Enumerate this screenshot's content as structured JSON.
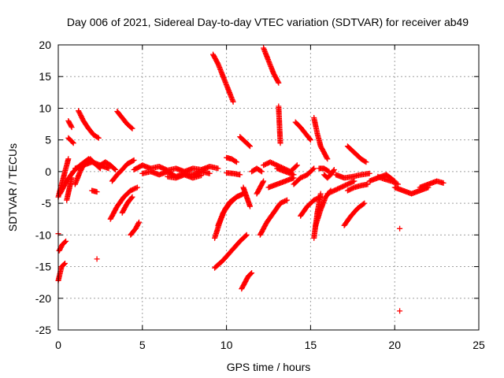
{
  "chart_data": {
    "type": "scatter",
    "title": "Day 006 of 2021, Sidereal Day-to-day VTEC variation (SDTVAR) for receiver ab49",
    "xlabel": "GPS time / hours",
    "ylabel": "SDTVAR / TECUs",
    "xlim": [
      0,
      25
    ],
    "ylim": [
      -25,
      20
    ],
    "x_ticks": [
      0,
      5,
      10,
      15,
      20,
      25
    ],
    "y_ticks": [
      -25,
      -20,
      -15,
      -10,
      -5,
      0,
      5,
      10,
      15,
      20
    ],
    "grid": true,
    "marker": "+",
    "colors": {
      "points": "#ff0000"
    },
    "arcs": [
      {
        "x": [
          0.0,
          0.2,
          0.4
        ],
        "y": [
          -17.2,
          -15.0,
          -14.5
        ]
      },
      {
        "x": [
          0.05,
          0.25,
          0.45
        ],
        "y": [
          -12.5,
          -11.5,
          -11.0
        ]
      },
      {
        "x": [
          0.0,
          0.2,
          0.4,
          0.6
        ],
        "y": [
          -4.0,
          -2.0,
          0.0,
          2.0
        ]
      },
      {
        "x": [
          0.1,
          0.5,
          0.9,
          1.3,
          1.8
        ],
        "y": [
          -3.5,
          -1.5,
          0.0,
          1.0,
          2.0
        ]
      },
      {
        "x": [
          0.5,
          0.8
        ],
        "y": [
          -4.5,
          -1.0
        ]
      },
      {
        "x": [
          0.6,
          0.8
        ],
        "y": [
          8.0,
          7.0
        ]
      },
      {
        "x": [
          0.6,
          0.9
        ],
        "y": [
          5.3,
          4.5
        ]
      },
      {
        "x": [
          1.2,
          1.5,
          1.8,
          2.1,
          2.4
        ],
        "y": [
          9.6,
          8.0,
          6.8,
          5.8,
          5.3
        ]
      },
      {
        "x": [
          1.0,
          1.3,
          1.6,
          1.9,
          2.2,
          2.5
        ],
        "y": [
          -2.0,
          0.0,
          1.5,
          2.0,
          1.2,
          0.5
        ]
      },
      {
        "x": [
          1.0,
          1.5,
          2.0,
          2.5,
          3.0
        ],
        "y": [
          0.5,
          1.0,
          1.5,
          1.0,
          0.5
        ]
      },
      {
        "x": [
          2.0,
          2.3
        ],
        "y": [
          -3.0,
          -3.2
        ]
      },
      {
        "x": [
          2.5,
          2.8,
          3.1,
          3.4
        ],
        "y": [
          1.0,
          1.5,
          1.0,
          0.3
        ]
      },
      {
        "x": [
          3.5,
          3.8,
          4.1,
          4.4
        ],
        "y": [
          9.5,
          8.5,
          7.5,
          6.8
        ]
      },
      {
        "x": [
          3.2,
          3.5,
          3.8,
          4.1,
          4.5
        ],
        "y": [
          -1.5,
          -0.5,
          0.3,
          1.2,
          1.8
        ]
      },
      {
        "x": [
          3.1,
          3.5,
          3.9,
          4.3,
          4.7
        ],
        "y": [
          -7.5,
          -5.5,
          -4.0,
          -3.0,
          -2.5
        ]
      },
      {
        "x": [
          3.8,
          4.1,
          4.4
        ],
        "y": [
          -6.5,
          -5.0,
          -4.0
        ]
      },
      {
        "x": [
          4.3,
          4.6,
          4.8
        ],
        "y": [
          -10.0,
          -9.0,
          -8.0
        ]
      },
      {
        "x": [
          4.5,
          5.0,
          5.5,
          6.0,
          6.5,
          7.0,
          7.5,
          8.0,
          8.5,
          9.0,
          9.5
        ],
        "y": [
          0.3,
          1.0,
          0.5,
          0.8,
          0.2,
          0.5,
          0.0,
          0.5,
          0.3,
          0.8,
          0.5
        ]
      },
      {
        "x": [
          5.0,
          5.5,
          6.0,
          6.5,
          7.0,
          7.5,
          8.0,
          8.5,
          9.0
        ],
        "y": [
          -0.3,
          0.0,
          -0.5,
          0.0,
          -0.8,
          -0.3,
          -0.5,
          0.0,
          -0.3
        ]
      },
      {
        "x": [
          6.5,
          7.0,
          7.5,
          8.0,
          8.5
        ],
        "y": [
          -0.8,
          -1.0,
          -0.5,
          -1.0,
          -0.6
        ]
      },
      {
        "x": [
          9.2,
          9.5,
          9.8,
          10.1,
          10.4
        ],
        "y": [
          18.5,
          17.0,
          15.0,
          13.0,
          11.0
        ]
      },
      {
        "x": [
          9.3,
          9.6,
          9.9,
          10.2,
          10.6,
          11.0
        ],
        "y": [
          -10.5,
          -8.0,
          -6.0,
          -4.8,
          -4.0,
          -3.5
        ]
      },
      {
        "x": [
          9.3,
          9.8,
          10.3,
          10.8,
          11.2
        ],
        "y": [
          -15.2,
          -14.0,
          -12.5,
          -11.0,
          -10.0
        ]
      },
      {
        "x": [
          9.5,
          9.8,
          10.2,
          10.6,
          11.0
        ],
        "y": [
          -8.5,
          -6.5,
          -5.0,
          -4.0,
          -3.5
        ]
      },
      {
        "x": [
          10.0,
          10.3,
          10.6
        ],
        "y": [
          2.2,
          2.0,
          1.5
        ]
      },
      {
        "x": [
          10.0,
          10.4,
          10.8
        ],
        "y": [
          -0.2,
          -0.3,
          -0.5
        ]
      },
      {
        "x": [
          10.8,
          11.0,
          11.2,
          11.4
        ],
        "y": [
          5.5,
          5.0,
          4.5,
          4.0
        ]
      },
      {
        "x": [
          10.9,
          11.1,
          11.3,
          11.5
        ],
        "y": [
          -18.5,
          -17.5,
          -16.5,
          -16.0
        ]
      },
      {
        "x": [
          11.5,
          11.8,
          12.1
        ],
        "y": [
          0.0,
          0.5,
          0.0
        ]
      },
      {
        "x": [
          11.0,
          11.2,
          11.4
        ],
        "y": [
          -2.5,
          -4.0,
          -5.5
        ]
      },
      {
        "x": [
          12.2,
          12.5,
          12.8,
          13.1
        ],
        "y": [
          19.5,
          17.5,
          15.5,
          14.0
        ]
      },
      {
        "x": [
          11.8,
          12.0,
          12.2
        ],
        "y": [
          -3.5,
          -2.5,
          -1.5
        ]
      },
      {
        "x": [
          12.0,
          12.4,
          12.8,
          13.2,
          13.6
        ],
        "y": [
          -10.0,
          -8.0,
          -6.5,
          -5.0,
          -4.5
        ]
      },
      {
        "x": [
          12.2,
          12.6,
          13.0,
          13.4,
          13.8,
          14.2
        ],
        "y": [
          1.0,
          1.5,
          1.0,
          0.5,
          0.0,
          1.0
        ]
      },
      {
        "x": [
          12.5,
          13.0,
          13.5,
          14.0
        ],
        "y": [
          -2.5,
          -2.0,
          -1.5,
          -1.0
        ]
      },
      {
        "x": [
          13.1,
          13.2
        ],
        "y": [
          10.3,
          4.5
        ]
      },
      {
        "x": [
          13.0,
          13.5,
          14.0
        ],
        "y": [
          0.5,
          0.0,
          -0.5
        ]
      },
      {
        "x": [
          14.1,
          14.4,
          14.7,
          15.0
        ],
        "y": [
          7.8,
          7.0,
          6.0,
          5.0
        ]
      },
      {
        "x": [
          14.0,
          14.4,
          14.8,
          15.2
        ],
        "y": [
          -2.0,
          -1.0,
          -0.5,
          0.5
        ]
      },
      {
        "x": [
          14.4,
          14.8,
          15.2,
          15.6
        ],
        "y": [
          -7.0,
          -5.5,
          -4.5,
          -4.0
        ]
      },
      {
        "x": [
          15.2,
          15.4,
          15.6,
          15.8,
          16.0
        ],
        "y": [
          8.5,
          6.0,
          4.0,
          3.0,
          2.0
        ]
      },
      {
        "x": [
          15.2,
          15.3,
          15.4,
          15.5,
          15.6
        ],
        "y": [
          -10.5,
          -8.5,
          -6.5,
          -5.0,
          -3.5
        ]
      },
      {
        "x": [
          15.3,
          15.6,
          15.9,
          16.2
        ],
        "y": [
          -8.5,
          -6.0,
          -4.0,
          -3.0
        ]
      },
      {
        "x": [
          15.5,
          15.8,
          16.1
        ],
        "y": [
          0.5,
          0.5,
          0.0
        ]
      },
      {
        "x": [
          15.8,
          16.0,
          16.2,
          16.4
        ],
        "y": [
          -0.5,
          -1.0,
          -0.5,
          0.3
        ]
      },
      {
        "x": [
          16.0,
          16.4,
          16.8,
          17.2,
          17.6
        ],
        "y": [
          -3.5,
          -3.0,
          -2.5,
          -2.0,
          -1.5
        ]
      },
      {
        "x": [
          16.5,
          17.0,
          17.5,
          18.0,
          18.5
        ],
        "y": [
          -0.5,
          -1.0,
          -0.8,
          -0.5,
          -0.3
        ]
      },
      {
        "x": [
          17.2,
          17.6,
          18.0,
          18.3
        ],
        "y": [
          4.0,
          3.0,
          2.0,
          1.5
        ]
      },
      {
        "x": [
          17.0,
          17.4,
          17.8,
          18.2
        ],
        "y": [
          -8.5,
          -7.0,
          -5.8,
          -5.0
        ]
      },
      {
        "x": [
          17.2,
          17.6,
          18.0,
          18.4
        ],
        "y": [
          -3.0,
          -2.5,
          -2.2,
          -2.0
        ]
      },
      {
        "x": [
          18.5,
          19.0,
          19.5,
          20.0
        ],
        "y": [
          -1.5,
          -1.0,
          -0.5,
          -1.5
        ]
      },
      {
        "x": [
          19.0,
          19.4,
          19.8,
          20.2
        ],
        "y": [
          -0.8,
          -1.2,
          -1.5,
          -2.0
        ]
      },
      {
        "x": [
          20.0,
          20.5,
          21.0,
          21.5,
          22.0
        ],
        "y": [
          -2.5,
          -3.0,
          -3.5,
          -3.0,
          -2.5
        ]
      },
      {
        "x": [
          21.5,
          22.0,
          22.5,
          22.9
        ],
        "y": [
          -2.5,
          -2.0,
          -1.5,
          -1.8
        ]
      },
      {
        "x": [
          2.3
        ],
        "y": [
          -13.8
        ]
      },
      {
        "x": [
          20.3
        ],
        "y": [
          -9.0
        ]
      },
      {
        "x": [
          20.3
        ],
        "y": [
          -22.0
        ]
      },
      {
        "x": [
          0.0
        ],
        "y": [
          -9.8
        ]
      },
      {
        "x": [
          1.0
        ],
        "y": [
          -2.0
        ]
      },
      {
        "x": [
          13.5
        ],
        "y": [
          0.2
        ]
      }
    ]
  }
}
